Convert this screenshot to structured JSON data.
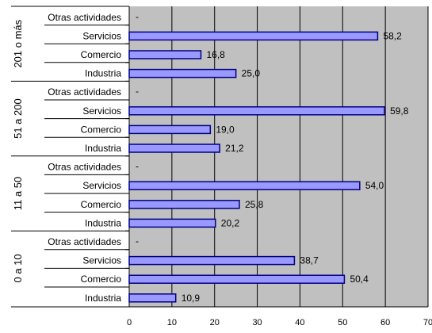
{
  "chart_data": {
    "type": "bar",
    "orientation": "horizontal",
    "grid": true,
    "legend": "none",
    "xlim": [
      0,
      70
    ],
    "x_ticks": [
      "0",
      "10",
      "20",
      "30",
      "40",
      "50",
      "60",
      "70"
    ],
    "groups": [
      {
        "label": "201 o más",
        "bars": [
          {
            "category": "Otras actividades",
            "value": null,
            "label": "-"
          },
          {
            "category": "Servicios",
            "value": 58.2,
            "label": "58,2"
          },
          {
            "category": "Comercio",
            "value": 16.8,
            "label": "16,8"
          },
          {
            "category": "Industria",
            "value": 25.0,
            "label": "25,0"
          }
        ]
      },
      {
        "label": "51 a 200",
        "bars": [
          {
            "category": "Otras actividades",
            "value": null,
            "label": "-"
          },
          {
            "category": "Servicios",
            "value": 59.8,
            "label": "59,8"
          },
          {
            "category": "Comercio",
            "value": 19.0,
            "label": "19,0"
          },
          {
            "category": "Industria",
            "value": 21.2,
            "label": "21,2"
          }
        ]
      },
      {
        "label": "11 a 50",
        "bars": [
          {
            "category": "Otras actividades",
            "value": null,
            "label": "-"
          },
          {
            "category": "Servicios",
            "value": 54.0,
            "label": "54,0"
          },
          {
            "category": "Comercio",
            "value": 25.8,
            "label": "25,8"
          },
          {
            "category": "Industria",
            "value": 20.2,
            "label": "20,2"
          }
        ]
      },
      {
        "label": "0 a 10",
        "bars": [
          {
            "category": "Otras actividades",
            "value": null,
            "label": "-"
          },
          {
            "category": "Servicios",
            "value": 38.7,
            "label": "38,7"
          },
          {
            "category": "Comercio",
            "value": 50.4,
            "label": "50,4"
          },
          {
            "category": "Industria",
            "value": 10.9,
            "label": "10,9"
          }
        ]
      }
    ],
    "colors": {
      "plot_background": "#c0c0c0",
      "bar_fill": "#9999ff",
      "bar_stroke": "#000080",
      "grid": "#000000",
      "axis": "#000000"
    }
  }
}
